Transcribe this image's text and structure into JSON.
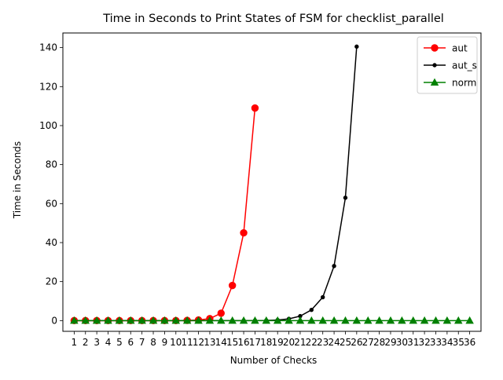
{
  "chart_data": {
    "type": "line",
    "title": "Time in Seconds to Print States of FSM for checklist_parallel",
    "xlabel": "Number of Checks",
    "ylabel": "Time in Seconds",
    "categories": [
      "1",
      "2",
      "3",
      "4",
      "5",
      "6",
      "7",
      "8",
      "9",
      "10",
      "11",
      "12",
      "13",
      "14",
      "15",
      "16",
      "17",
      "18",
      "19",
      "20",
      "21",
      "22",
      "23",
      "24",
      "25",
      "26",
      "27",
      "28",
      "29",
      "30",
      "31",
      "32",
      "33",
      "34",
      "35",
      "36"
    ],
    "xlim": [
      0,
      37
    ],
    "ylim": [
      -5.5,
      147.5
    ],
    "yticks": [
      0,
      20,
      40,
      60,
      80,
      100,
      120,
      140
    ],
    "legend_position": "top-right",
    "grid": false,
    "series": [
      {
        "name": "aut",
        "color": "#ff0000",
        "marker": "circle",
        "x": [
          1,
          2,
          3,
          4,
          5,
          6,
          7,
          8,
          9,
          10,
          11,
          12,
          13,
          14,
          15,
          16,
          17
        ],
        "values": [
          0,
          0,
          0,
          0,
          0,
          0,
          0,
          0,
          0,
          0,
          0.1,
          0.3,
          1.0,
          3.8,
          18,
          45,
          109
        ]
      },
      {
        "name": "aut_s",
        "color": "#000000",
        "marker": "dot",
        "x": [
          1,
          2,
          3,
          4,
          5,
          6,
          7,
          8,
          9,
          10,
          11,
          12,
          13,
          14,
          15,
          16,
          17,
          18,
          19,
          20,
          21,
          22,
          23,
          24,
          25,
          26
        ],
        "values": [
          0,
          0,
          0,
          0,
          0,
          0,
          0,
          0,
          0,
          0,
          0,
          0,
          0,
          0,
          0,
          0,
          0.05,
          0.1,
          0.3,
          0.9,
          2.3,
          5.5,
          12,
          28,
          63,
          140.5
        ]
      },
      {
        "name": "norm",
        "color": "#008000",
        "marker": "triangle",
        "x": [
          1,
          2,
          3,
          4,
          5,
          6,
          7,
          8,
          9,
          10,
          11,
          12,
          13,
          14,
          15,
          16,
          17,
          18,
          19,
          20,
          21,
          22,
          23,
          24,
          25,
          26,
          27,
          28,
          29,
          30,
          31,
          32,
          33,
          34,
          35,
          36
        ],
        "values": [
          0,
          0,
          0,
          0,
          0,
          0,
          0,
          0,
          0,
          0,
          0,
          0,
          0,
          0,
          0,
          0,
          0,
          0,
          0,
          0,
          0,
          0,
          0,
          0,
          0,
          0,
          0,
          0,
          0,
          0,
          0,
          0,
          0,
          0,
          0,
          0
        ]
      }
    ]
  }
}
